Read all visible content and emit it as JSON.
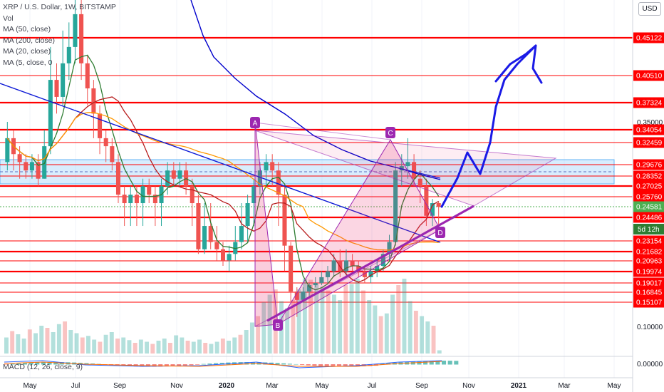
{
  "chart_data": {
    "type": "candlestick",
    "legend": {
      "title": "XRP / U.S. Dollar, 1W, BITSTAMP",
      "vol": "Vol",
      "ma50": "MA (50, close)",
      "ma200": "MA (200, close)",
      "ma20": "MA (20, close)",
      "ma5": "MA (5, close, 0"
    },
    "currency": "USD",
    "macd_label": "MACD (12, 26, close, 9)",
    "x_tick_labels": [
      "May",
      "Jul",
      "Sep",
      "Nov",
      "2020",
      "Mar",
      "May",
      "Jul",
      "Sep",
      "Nov",
      "2021",
      "Mar",
      "May"
    ],
    "y_tick_labels": [
      "0.35000",
      "0.10000"
    ],
    "macd_tick": "0.00000",
    "horizontal_levels": [
      {
        "value": "0.45122",
        "weight": "thick"
      },
      {
        "value": "0.40510",
        "weight": "thin"
      },
      {
        "value": "0.37324",
        "weight": "thick"
      },
      {
        "value": "0.34054",
        "weight": "thick"
      },
      {
        "value": "0.32459",
        "weight": "thin"
      },
      {
        "value": "0.29676",
        "weight": "thin"
      },
      {
        "value": "0.28352",
        "weight": "thin"
      },
      {
        "value": "0.27025",
        "weight": "thick"
      },
      {
        "value": "0.25760",
        "weight": "thin"
      },
      {
        "value": "0.24486",
        "weight": "thick"
      },
      {
        "value": "0.23154",
        "weight": "thin"
      },
      {
        "value": "0.21682",
        "weight": "thick"
      },
      {
        "value": "0.20963",
        "weight": "thin"
      },
      {
        "value": "0.19974",
        "weight": "thick"
      },
      {
        "value": "0.19017",
        "weight": "thin"
      },
      {
        "value": "0.16845",
        "weight": "thin"
      },
      {
        "value": "0.15107",
        "weight": "thin"
      }
    ],
    "current_price": "0.24581",
    "countdown": "5d 12h",
    "pattern_points": [
      "A",
      "B",
      "C",
      "D"
    ],
    "colors": {
      "up": "#26a69a",
      "down": "#ef5350",
      "level": "#ff0000",
      "pattern": "#9c27b0",
      "pattern_fill": "#e91e63",
      "trend": "#0d1ad6",
      "ma50": "#b71c1c",
      "ma200": "#0000cc",
      "ma20": "#ff9800",
      "ma5": "#2e7d32",
      "zone": "#90caf9"
    }
  }
}
